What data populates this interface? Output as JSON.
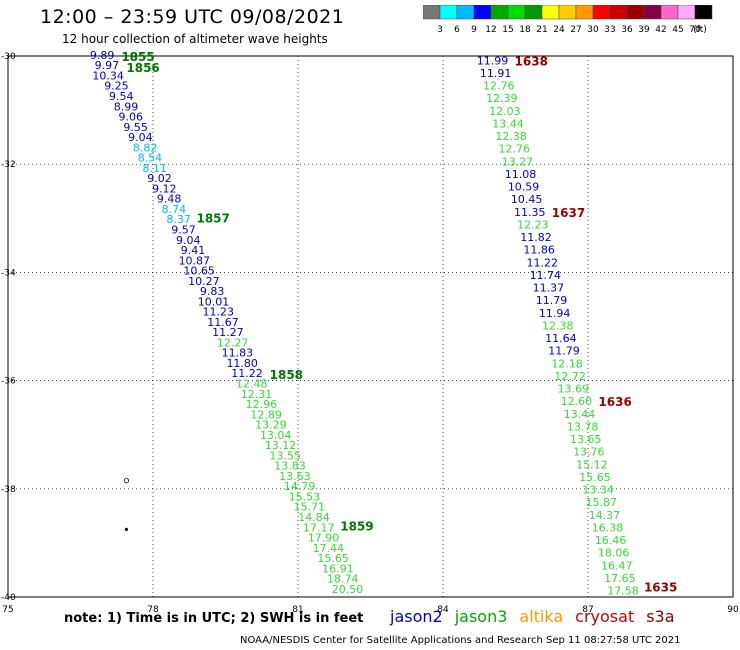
{
  "title": "12:00 – 23:59 UTC 09/08/2021",
  "subtitle": "12 hour collection of altimeter wave heights",
  "note": "note: 1) Time is in UTC; 2) SWH is in feet",
  "credit": "NOAA/NESDIS Center for Satellite Applications and Research   Sep 11 08:27:58 UTC 2021",
  "missions": [
    {
      "label": "jason2",
      "color": "#0000cc"
    },
    {
      "label": "jason3",
      "color": "#00aa00"
    },
    {
      "label": "altika",
      "color": "#ff9900"
    },
    {
      "label": "cryosat",
      "color": "#cc0000"
    },
    {
      "label": "s3a",
      "color": "#880000"
    }
  ],
  "colorbar": {
    "unit": "(ft)",
    "labels": [
      "3",
      "6",
      "9",
      "12",
      "15",
      "18",
      "21",
      "24",
      "27",
      "30",
      "33",
      "36",
      "39",
      "42",
      "45",
      "70"
    ],
    "colors": [
      "#777777",
      "#00ffff",
      "#00bbff",
      "#0000ff",
      "#00aa00",
      "#00dd00",
      "#009900",
      "#ffff00",
      "#ffcc00",
      "#ff9900",
      "#ff0000",
      "#cc0000",
      "#990000",
      "#880044",
      "#ff66cc",
      "#ffaaff",
      "#000000"
    ]
  },
  "chart_data": {
    "type": "scatter",
    "xlim": [
      75,
      90
    ],
    "ylim": [
      -40,
      -30
    ],
    "xticks": [
      75,
      78,
      81,
      84,
      87,
      90
    ],
    "yticks": [
      -30,
      -32,
      -34,
      -36,
      -38,
      -40
    ],
    "grid": true,
    "pass_a": {
      "values": [
        "9.89",
        "9.97",
        "10.34",
        "9.25",
        "9.54",
        "8.99",
        "9.06",
        "9.55",
        "9.04",
        "8.82",
        "8.54",
        "8.11",
        "9.02",
        "9.12",
        "9.48",
        "8.74",
        "8.37",
        "9.57",
        "9.04",
        "9.41",
        "10.87",
        "10.65",
        "10.27",
        "9.83",
        "10.01",
        "11.23",
        "11.67",
        "11.27",
        "12.27",
        "11.83",
        "11.80",
        "11.22",
        "12.48",
        "12.31",
        "12.96",
        "12.89",
        "13.29",
        "13.04",
        "13.12",
        "13.55",
        "13.83",
        "13.63",
        "14.79",
        "15.53",
        "15.71",
        "14.84",
        "17.17",
        "17.90",
        "17.44",
        "15.65",
        "16.91",
        "18.74",
        "20.50"
      ],
      "start": [
        -29.98,
        77.2
      ],
      "end": [
        -39.85,
        82.35
      ],
      "times": [
        {
          "label": "1855",
          "lat": -30.02
        },
        {
          "label": "1856",
          "lat": -30.22
        },
        {
          "label": "1857",
          "lat": -33.0
        },
        {
          "label": "1858",
          "lat": -35.9
        },
        {
          "label": "1859",
          "lat": -38.7
        }
      ]
    },
    "pass_b": {
      "values": [
        "11.99",
        "11.91",
        "12.76",
        "12.39",
        "12.03",
        "13.44",
        "12.38",
        "12.76",
        "13.27",
        "11.08",
        "10.59",
        "10.45",
        "11.35",
        "12.23",
        "11.82",
        "11.86",
        "11.22",
        "11.74",
        "11.37",
        "11.79",
        "11.94",
        "12.38",
        "11.64",
        "11.79",
        "12.18",
        "12.72",
        "13.69",
        "12.60",
        "13.44",
        "13.78",
        "13.65",
        "13.76",
        "15.12",
        "15.65",
        "13.34",
        "15.87",
        "14.37",
        "16.38",
        "16.46",
        "18.06",
        "16.47",
        "17.65",
        "17.58"
      ],
      "start": [
        -30.08,
        85.35
      ],
      "end": [
        -39.88,
        88.05
      ],
      "times": [
        {
          "label": "1638",
          "lat": -30.1
        },
        {
          "label": "1637",
          "lat": -32.9
        },
        {
          "label": "1636",
          "lat": -36.4
        },
        {
          "label": "1635",
          "lat": -39.82
        }
      ]
    },
    "markers": [
      {
        "lon": 77.45,
        "lat": -37.85
      },
      {
        "lon": 77.45,
        "lat": -38.75
      }
    ]
  }
}
